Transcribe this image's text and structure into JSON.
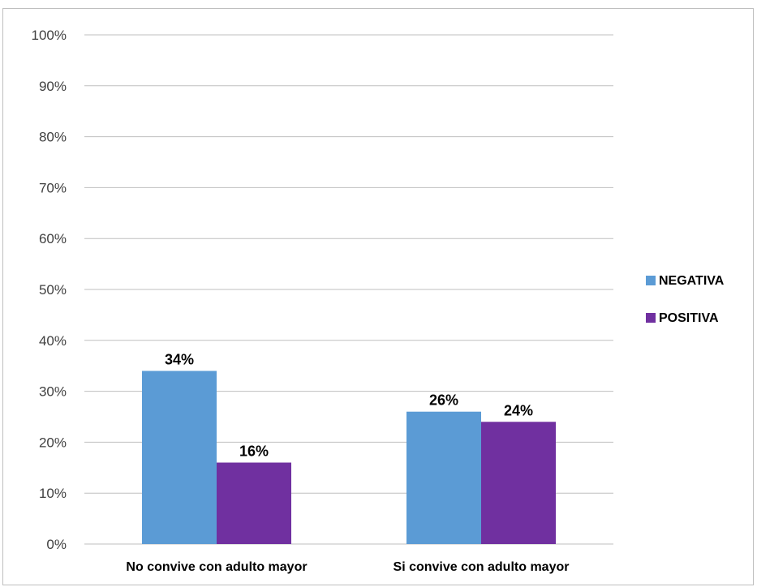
{
  "chart_data": {
    "type": "bar",
    "title": "",
    "xlabel": "",
    "ylabel": "",
    "categories": [
      "No convive con adulto mayor",
      "Si convive con adulto mayor"
    ],
    "series": [
      {
        "name": "NEGATIVA",
        "values": [
          34,
          26
        ],
        "color": "#5b9bd5"
      },
      {
        "name": "POSITIVA",
        "values": [
          16,
          24
        ],
        "color": "#7030a0"
      }
    ],
    "ylim": [
      0,
      100
    ],
    "y_ticks": [
      0,
      10,
      20,
      30,
      40,
      50,
      60,
      70,
      80,
      90,
      100
    ],
    "y_tick_format": "percent",
    "data_labels": true,
    "grid": true,
    "legend_position": "right"
  }
}
